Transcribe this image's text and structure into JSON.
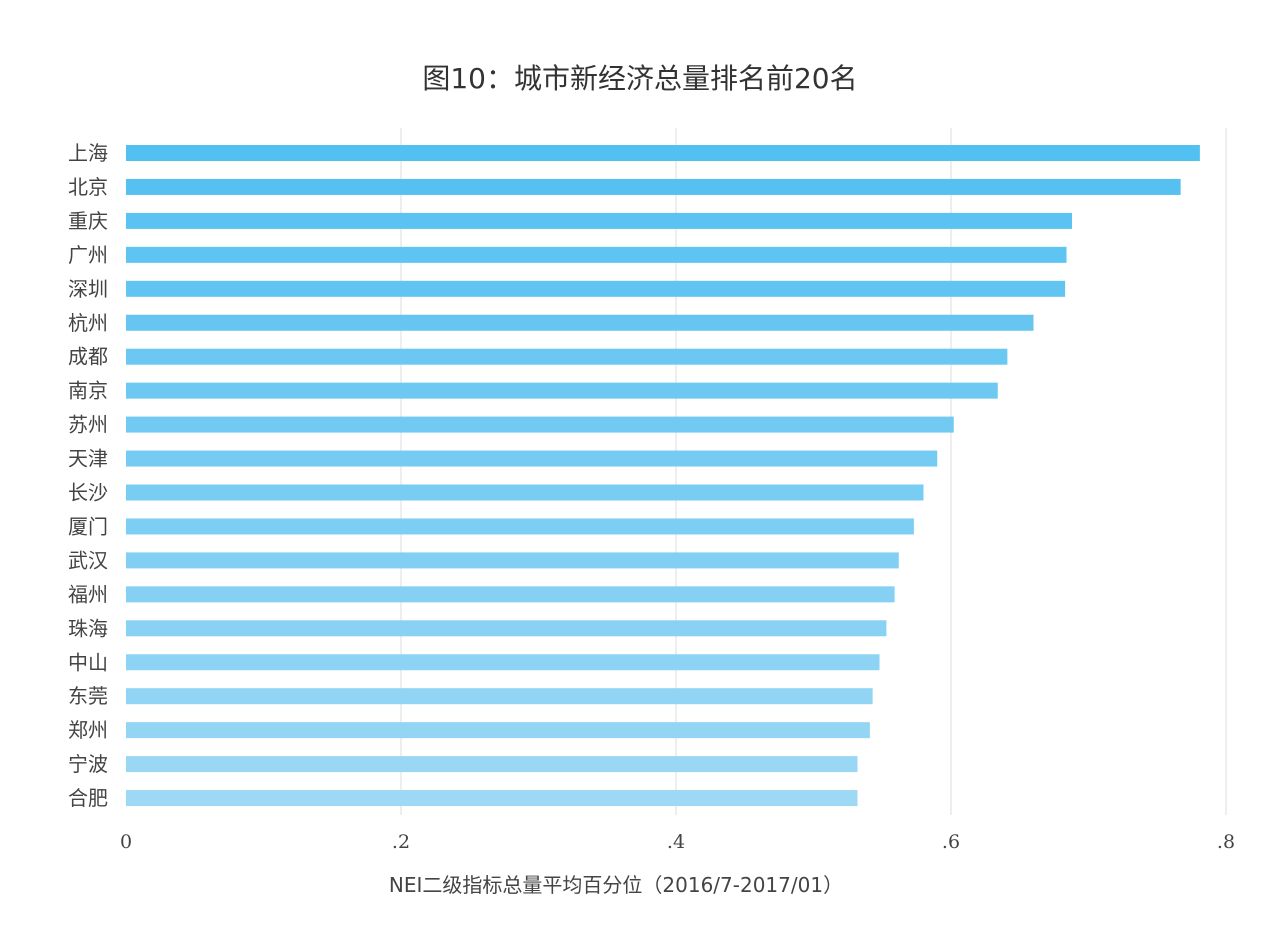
{
  "chart_data": {
    "type": "bar",
    "orientation": "horizontal",
    "title": "图10：城市新经济总量排名前20名",
    "xlabel": "NEI二级指标总量平均百分位（2016/7-2017/01）",
    "ylabel": "",
    "xlim": [
      0,
      0.8
    ],
    "xticks": [
      0,
      0.2,
      0.4,
      0.6,
      0.8
    ],
    "xtick_labels": [
      "0",
      ".2",
      ".4",
      ".6",
      ".8"
    ],
    "grid": "vertical",
    "categories": [
      "上海",
      "北京",
      "重庆",
      "广州",
      "深圳",
      "杭州",
      "成都",
      "南京",
      "苏州",
      "天津",
      "长沙",
      "厦门",
      "武汉",
      "福州",
      "珠海",
      "中山",
      "东莞",
      "郑州",
      "宁波",
      "合肥"
    ],
    "values": [
      0.781,
      0.767,
      0.688,
      0.684,
      0.683,
      0.66,
      0.641,
      0.634,
      0.602,
      0.59,
      0.58,
      0.573,
      0.562,
      0.559,
      0.553,
      0.548,
      0.543,
      0.541,
      0.532,
      0.532
    ],
    "colors": {
      "bar_top": "#52c0f0",
      "bar_bottom": "#9dd8f5",
      "grid": "#dddddd"
    }
  }
}
